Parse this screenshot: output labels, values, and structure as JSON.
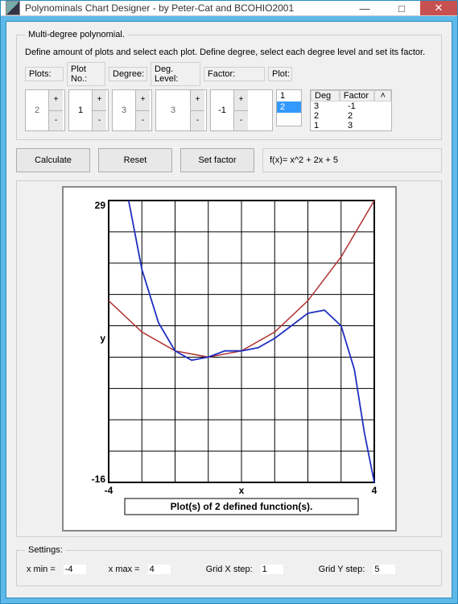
{
  "window": {
    "title": "Polynominals Chart Designer - by Peter-Cat and BCOHIO2001"
  },
  "group": {
    "legend": "Multi-degree polynomial.",
    "instructions": "Define amount of plots and select each plot. Define degree, select each degree level and set its factor.",
    "headers": {
      "plots": "Plots:",
      "plotno": "Plot No.:",
      "degree": "Degree:",
      "deglevel": "Deg. Level:",
      "factor": "Factor:",
      "plot": "Plot:"
    },
    "values": {
      "plots": "2",
      "plotno": "1",
      "degree": "3",
      "deglevel": "3",
      "factor": "-1"
    },
    "plotlist": {
      "items": [
        "1",
        "2"
      ],
      "selected_index": 1
    },
    "table": {
      "col_deg": "Deg",
      "col_factor": "Factor",
      "rows": [
        {
          "deg": "3",
          "factor": "-1"
        },
        {
          "deg": "2",
          "factor": "2"
        },
        {
          "deg": "1",
          "factor": "3"
        }
      ]
    }
  },
  "buttons": {
    "calculate": "Calculate",
    "reset": "Reset",
    "setfactor": "Set factor"
  },
  "formula": "f(x)= x^2 + 2x + 5",
  "chart": {
    "type": "line",
    "xlabel": "x",
    "ylabel": "y",
    "xlim": [
      -4,
      4
    ],
    "ylim": [
      -16,
      29
    ],
    "ymax_label": "29",
    "ymin_label": "-16",
    "xmin_label": "-4",
    "xmax_label": "4",
    "grid_x_divisions": 8,
    "grid_y_divisions": 9,
    "caption": "Plot(s) of 2 defined function(s).",
    "background_color": "#ffffff",
    "grid_color": "#000000",
    "outer_border_color": "#888888",
    "caption_bg": "#ffffff",
    "series": [
      {
        "name": "red",
        "color": "#b03030",
        "width": 1.5,
        "points": [
          [
            -4,
            13
          ],
          [
            -3,
            8
          ],
          [
            -2,
            5
          ],
          [
            -1,
            4
          ],
          [
            0,
            5
          ],
          [
            1,
            8
          ],
          [
            2,
            13
          ],
          [
            3,
            20
          ],
          [
            4,
            29
          ]
        ]
      },
      {
        "name": "blue",
        "color": "#2030c0",
        "width": 1.8,
        "points": [
          [
            -3.4,
            29
          ],
          [
            -3,
            18
          ],
          [
            -2.5,
            9.5
          ],
          [
            -2,
            5
          ],
          [
            -1.5,
            3.5
          ],
          [
            -1,
            4
          ],
          [
            -0.5,
            5
          ],
          [
            0,
            5
          ],
          [
            0.5,
            5.5
          ],
          [
            1,
            7
          ],
          [
            1.5,
            9
          ],
          [
            2,
            11
          ],
          [
            2.5,
            11.5
          ],
          [
            3,
            9
          ],
          [
            3.4,
            2
          ],
          [
            3.7,
            -8
          ],
          [
            4,
            -16
          ]
        ]
      }
    ]
  },
  "settings": {
    "legend": "Settings:",
    "xmin_label": "x min =",
    "xmin": "-4",
    "xmax_label": "x max =",
    "xmax": "4",
    "gridx_label": "Grid X step:",
    "gridx": "1",
    "gridy_label": "Grid Y step:",
    "gridy": "5"
  }
}
